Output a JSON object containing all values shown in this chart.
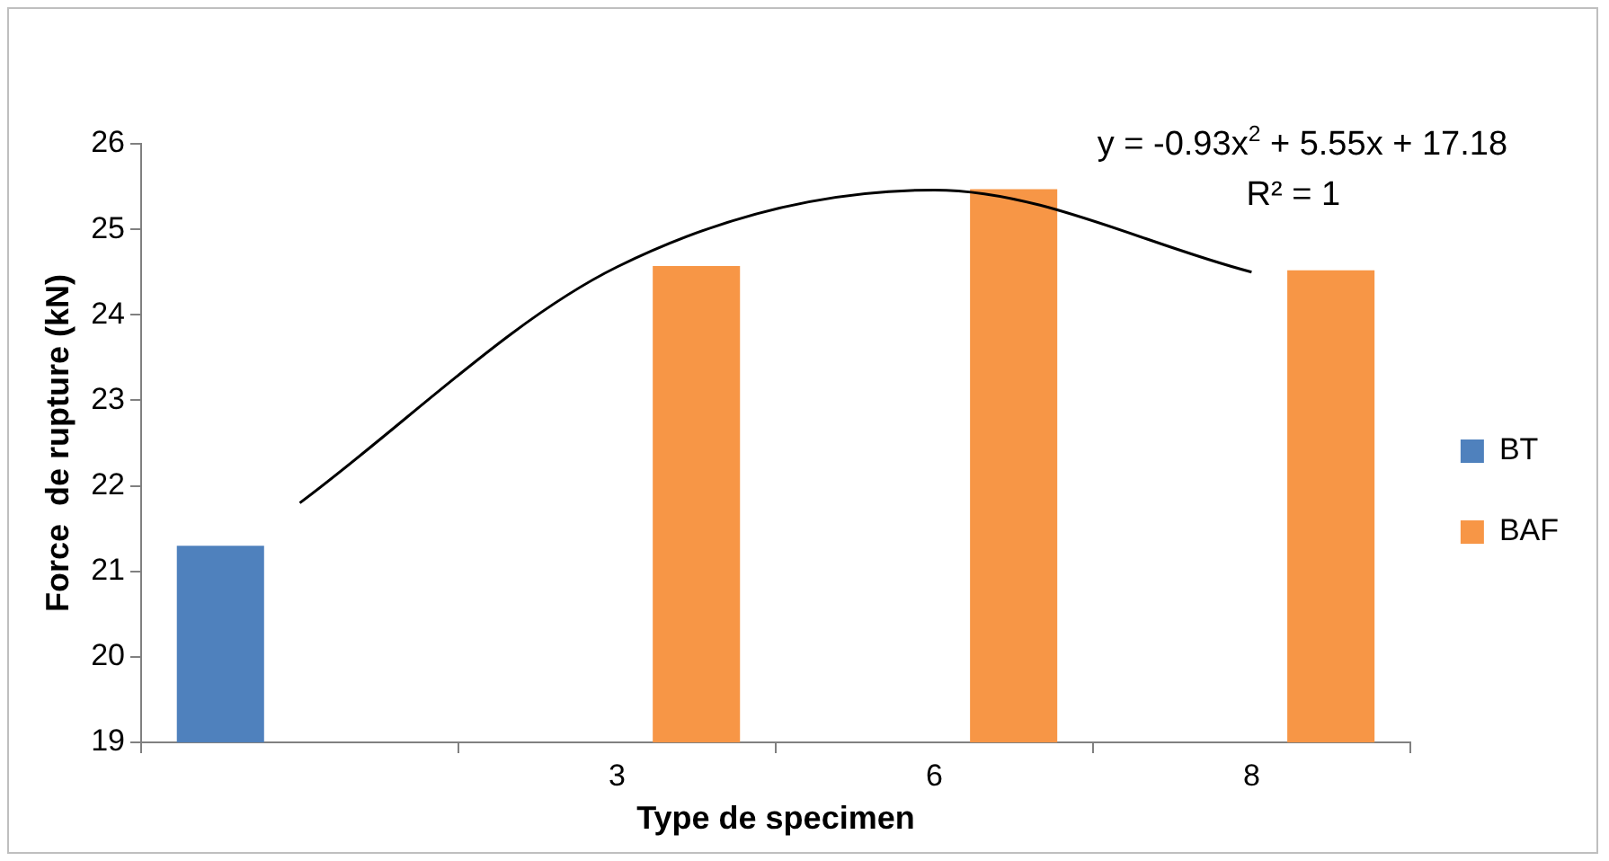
{
  "chart_data": {
    "type": "bar",
    "xlabel": "Type de specimen",
    "ylabel": "Force  de rupture (kN)",
    "categories": [
      null,
      "3",
      "6",
      "8"
    ],
    "series": [
      {
        "name": "BT",
        "color": "#4f81bd",
        "values": [
          21.3,
          null,
          null,
          null
        ]
      },
      {
        "name": "BAF",
        "color": "#f79646",
        "values": [
          null,
          24.57,
          25.47,
          24.52
        ]
      },
      {
        "type": "line",
        "color": "#000000",
        "values": [
          21.8,
          24.56,
          25.46,
          24.5
        ],
        "marker": "none"
      }
    ],
    "ylim": [
      19,
      26
    ],
    "yticks": [
      19,
      20,
      21,
      22,
      23,
      24,
      25,
      26
    ],
    "grid": false,
    "legend": "right",
    "annotations": [
      "y = -0.93x$^{2}$ + 5.55x + 17.18",
      "R² = 1"
    ]
  }
}
